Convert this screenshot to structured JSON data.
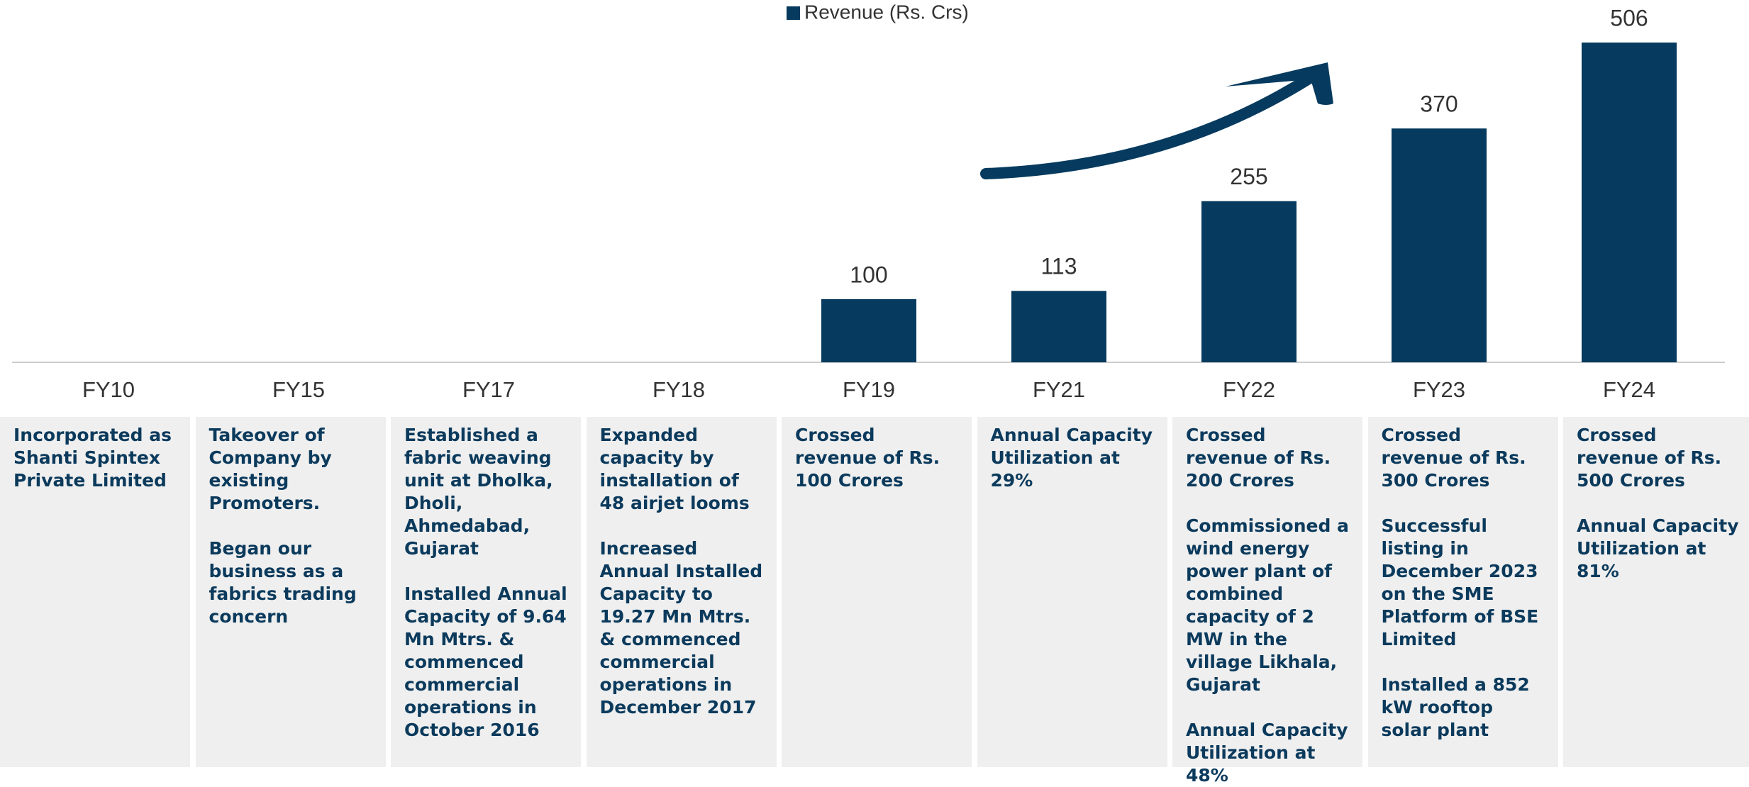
{
  "chart_data": {
    "type": "bar",
    "legend": "Revenue (Rs. Crs)",
    "color": "#063a5e",
    "categories": [
      "FY10",
      "FY15",
      "FY17",
      "FY18",
      "FY19",
      "FY21",
      "FY22",
      "FY23",
      "FY24"
    ],
    "values": [
      null,
      null,
      null,
      null,
      100,
      113,
      255,
      370,
      506
    ],
    "annotations": [
      [
        "Incorporated as Shanti Spintex Private Limited"
      ],
      [
        "Takeover of Company by existing Promoters.",
        "Began our business as a fabrics trading concern"
      ],
      [
        "Established a fabric weaving unit at Dholka, Dholi, Ahmedabad, Gujarat",
        "Installed Annual Capacity of 9.64 Mn Mtrs. & commenced commercial operations in October 2016"
      ],
      [
        "Expanded capacity by installation  of 48 airjet looms",
        "Increased Annual Installed Capacity to 19.27 Mn Mtrs. & commenced commercial operations in December 2017"
      ],
      [
        "Crossed revenue of Rs. 100 Crores"
      ],
      [
        "Annual Capacity Utilization at 29%"
      ],
      [
        "Crossed revenue of Rs. 200 Crores",
        "Commissioned a wind energy power plant of combined capacity of 2 MW in the village Likhala, Gujarat",
        "Annual Capacity Utilization at 48%"
      ],
      [
        "Crossed revenue of Rs. 300 Crores",
        "Successful listing in December 2023 on the SME Platform of BSE Limited",
        "Installed a 852 kW rooftop solar plant"
      ],
      [
        "Crossed revenue of Rs. 500 Crores",
        "Annual Capacity Utilization at 81%"
      ]
    ]
  }
}
